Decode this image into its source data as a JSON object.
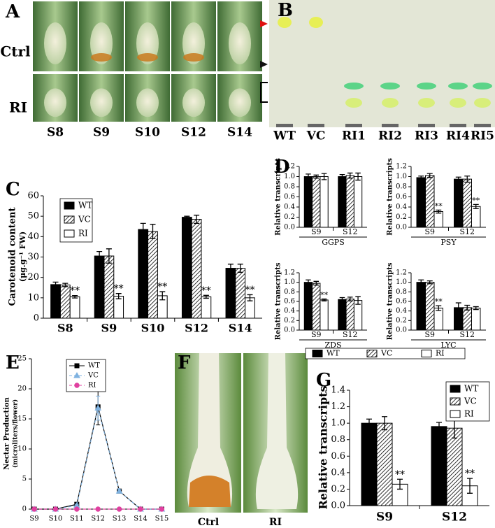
{
  "panels": {
    "A": {
      "label": "A",
      "rows": [
        "Ctrl",
        "RI"
      ],
      "columns": [
        "S8",
        "S9",
        "S10",
        "S12",
        "S14"
      ]
    },
    "B": {
      "label": "B",
      "lanes": [
        "WT",
        "VC",
        "RI1",
        "RI2",
        "RI3",
        "RI4",
        "RI5"
      ]
    },
    "F": {
      "label": "F",
      "images": [
        "Ctrl",
        "RI"
      ]
    }
  },
  "chart_data": [
    {
      "type": "bar",
      "label": "C",
      "ylabel": [
        "Carotenoid content",
        "(μg.g⁻¹ FW)"
      ],
      "categories": [
        "S8",
        "S9",
        "S10",
        "S12",
        "S14"
      ],
      "ylim": [
        0,
        60
      ],
      "yticks": [
        0,
        10,
        20,
        30,
        40,
        50,
        60
      ],
      "series": [
        {
          "name": "WT",
          "color": "#000000",
          "hatch": false,
          "values": [
            16.5,
            30.5,
            43.5,
            49.5,
            24.5
          ],
          "errors": [
            1.2,
            2.2,
            3,
            0.5,
            2
          ]
        },
        {
          "name": "VC",
          "color": "#000000",
          "hatch": true,
          "values": [
            16.3,
            30.5,
            42.5,
            48.5,
            24.5
          ],
          "errors": [
            0.8,
            3.5,
            3.5,
            2,
            2
          ]
        },
        {
          "name": "RI",
          "color": "#ffffff",
          "hatch": false,
          "values": [
            10.5,
            10.8,
            11,
            10.5,
            10
          ],
          "errors": [
            0.6,
            1.3,
            2,
            0.7,
            1.5
          ]
        }
      ],
      "annotations": [
        {
          "text": "**",
          "series": 2,
          "index": 0
        },
        {
          "text": "**",
          "series": 2,
          "index": 1
        },
        {
          "text": "**",
          "series": 2,
          "index": 2
        },
        {
          "text": "**",
          "series": 2,
          "index": 3
        },
        {
          "text": "**",
          "series": 2,
          "index": 4
        }
      ]
    },
    {
      "type": "bar-grid",
      "label": "D",
      "ylabel": "Relative transcripts",
      "categories": [
        "S9",
        "S12"
      ],
      "ylim": [
        0,
        1.2
      ],
      "yticks": [
        {
          "value": 0,
          "label": "0.0"
        },
        0.2,
        0.4,
        0.6,
        0.8,
        {
          "value": 1,
          "label": "1.0"
        },
        1.2
      ],
      "series": [
        {
          "name": "WT",
          "color": "#000000",
          "hatch": false
        },
        {
          "name": "VC",
          "color": "#000000",
          "hatch": true
        },
        {
          "name": "RI",
          "color": "#ffffff",
          "hatch": false
        }
      ],
      "subplots": [
        {
          "title": "GGPS",
          "values": [
            [
              1.0,
              1.0
            ],
            [
              1.0,
              1.02
            ],
            [
              1.0,
              1.0
            ]
          ],
          "errors": [
            [
              0.05,
              0.04
            ],
            [
              0.03,
              0.05
            ],
            [
              0.06,
              0.07
            ]
          ],
          "annotations": []
        },
        {
          "title": "PSY",
          "values": [
            [
              0.98,
              0.95
            ],
            [
              1.02,
              0.95
            ],
            [
              0.31,
              0.41
            ]
          ],
          "errors": [
            [
              0.03,
              0.04
            ],
            [
              0.04,
              0.06
            ],
            [
              0.03,
              0.04
            ]
          ],
          "annotations": [
            {
              "text": "**",
              "series": 2,
              "index": 0
            },
            {
              "text": "**",
              "series": 2,
              "index": 1
            }
          ]
        },
        {
          "title": "ZDS",
          "values": [
            [
              1.0,
              0.64
            ],
            [
              0.98,
              0.65
            ],
            [
              0.63,
              0.62
            ]
          ],
          "errors": [
            [
              0.05,
              0.04
            ],
            [
              0.04,
              0.04
            ],
            [
              0.02,
              0.08
            ]
          ],
          "annotations": [
            {
              "text": "**",
              "series": 2,
              "index": 0
            }
          ]
        },
        {
          "title": "LYC",
          "values": [
            [
              1.0,
              0.47
            ],
            [
              1.0,
              0.47
            ],
            [
              0.46,
              0.46
            ]
          ],
          "errors": [
            [
              0.05,
              0.1
            ],
            [
              0.03,
              0.05
            ],
            [
              0.05,
              0.03
            ]
          ],
          "annotations": [
            {
              "text": "**",
              "series": 2,
              "index": 0
            }
          ]
        }
      ]
    },
    {
      "type": "line",
      "label": "E",
      "ylabel": [
        "Nectar Production",
        "(microliters/flower)"
      ],
      "categories": [
        "S9",
        "S10",
        "S11",
        "S12",
        "S13",
        "S14",
        "S15"
      ],
      "ylim": [
        0,
        25
      ],
      "yticks": [
        0,
        5,
        10,
        15,
        20,
        25
      ],
      "series": [
        {
          "name": "WT",
          "color": "#000000",
          "marker": "square",
          "dashed": false,
          "values": [
            0,
            0,
            0.8,
            17,
            3,
            0,
            0
          ],
          "errors": [
            0,
            0,
            0.3,
            3,
            0.3,
            0,
            0
          ]
        },
        {
          "name": "VC",
          "color": "#7fb2e0",
          "marker": "triangle",
          "dashed": true,
          "values": [
            0,
            0,
            0.6,
            16.8,
            3,
            0,
            0
          ],
          "errors": [
            0,
            0,
            0.2,
            2,
            0.3,
            0,
            0
          ]
        },
        {
          "name": "RI",
          "color": "#e040a0",
          "marker": "circle",
          "dashed": true,
          "values": [
            0,
            0,
            0,
            0,
            0,
            0,
            0
          ],
          "errors": [
            0,
            0,
            0,
            0,
            0,
            0,
            0
          ]
        }
      ]
    },
    {
      "type": "bar",
      "label": "G",
      "ylabel": [
        "Relative transcripts"
      ],
      "categories": [
        "S9",
        "S12"
      ],
      "ylim": [
        0,
        1.4
      ],
      "yticks": [
        {
          "value": 0,
          "label": "0.0"
        },
        0.2,
        0.4,
        0.6,
        0.8,
        {
          "value": 1,
          "label": "1.0"
        },
        1.2,
        1.4
      ],
      "series": [
        {
          "name": "WT",
          "color": "#000000",
          "hatch": false,
          "values": [
            1.0,
            0.96
          ],
          "errors": [
            0.05,
            0.05
          ]
        },
        {
          "name": "VC",
          "color": "#000000",
          "hatch": true,
          "values": [
            1.0,
            0.94
          ],
          "errors": [
            0.08,
            0.12
          ]
        },
        {
          "name": "RI",
          "color": "#ffffff",
          "hatch": false,
          "values": [
            0.26,
            0.24
          ],
          "errors": [
            0.06,
            0.09
          ]
        }
      ],
      "annotations": [
        {
          "text": "**",
          "series": 2,
          "index": 0
        },
        {
          "text": "**",
          "series": 2,
          "index": 1
        }
      ]
    }
  ]
}
